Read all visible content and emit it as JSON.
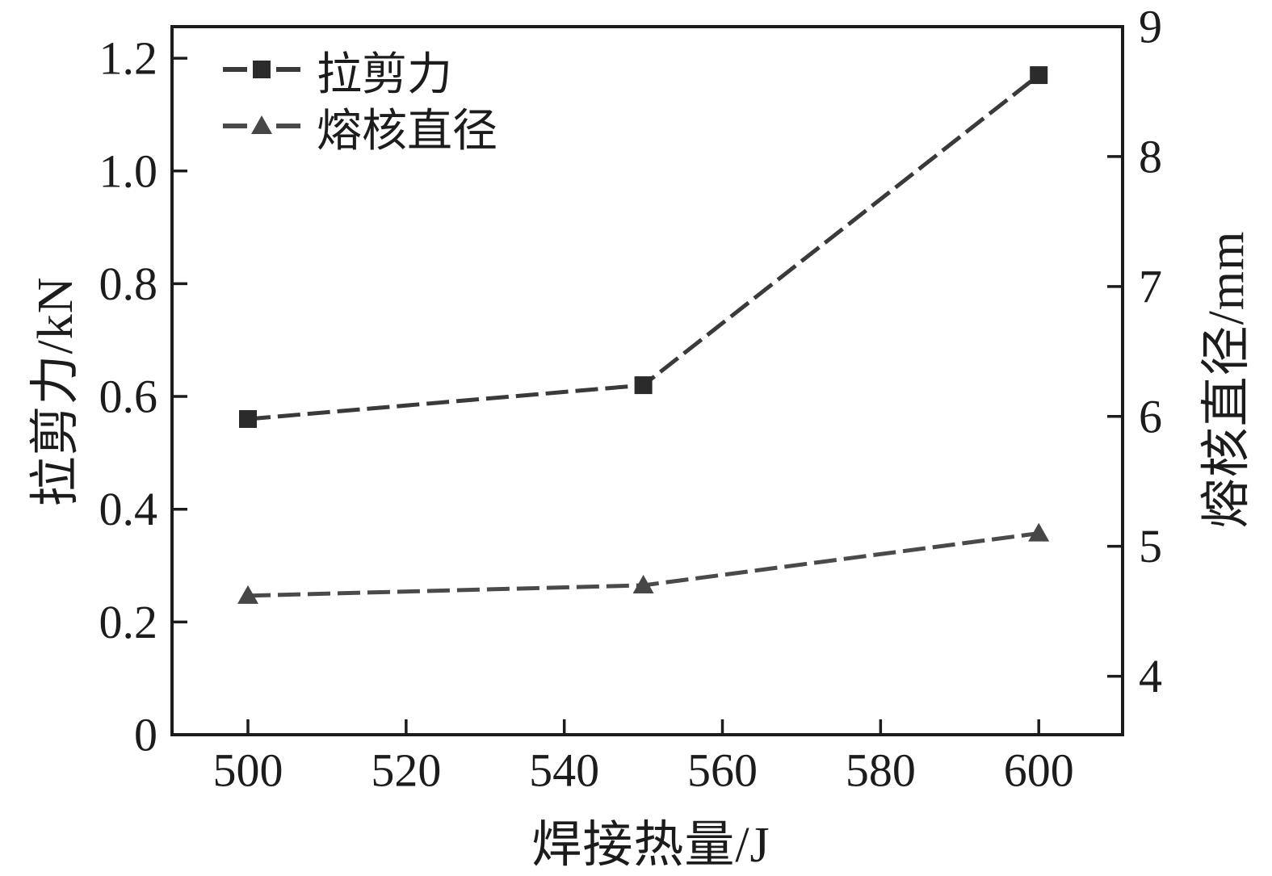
{
  "chart_data": {
    "type": "line",
    "title": "",
    "xlabel": "焊接热量/J",
    "ylabel_left": "拉剪力/kN",
    "ylabel_right": "熔核直径/mm",
    "x": [
      500,
      550,
      600
    ],
    "series": [
      {
        "name": "拉剪力",
        "axis": "left",
        "marker": "square",
        "line_style": "dashed",
        "color": "#2b2b2b",
        "line_color": "#3a3a3a",
        "values": [
          0.56,
          0.62,
          1.17
        ]
      },
      {
        "name": "熔核直径",
        "axis": "right",
        "marker": "triangle",
        "line_style": "dashed",
        "color": "#474747",
        "line_color": "#4a4a4a",
        "values": [
          4.62,
          4.7,
          5.1
        ]
      }
    ],
    "x_ticks": [
      "500",
      "520",
      "540",
      "560",
      "580",
      "600"
    ],
    "y_left_ticks": [
      "0",
      "0.2",
      "0.4",
      "0.6",
      "0.8",
      "1.0",
      "1.2"
    ],
    "y_right_ticks": [
      "4",
      "5",
      "6",
      "7",
      "8",
      "9"
    ],
    "x_range": [
      490.4,
      610.6
    ],
    "y_left_range": [
      0,
      1.256
    ],
    "y_right_range": [
      3.55,
      9.0
    ],
    "grid": false,
    "legend_position": "upper-left",
    "axis_color": "#1c1c1c",
    "background": "#ffffff"
  }
}
